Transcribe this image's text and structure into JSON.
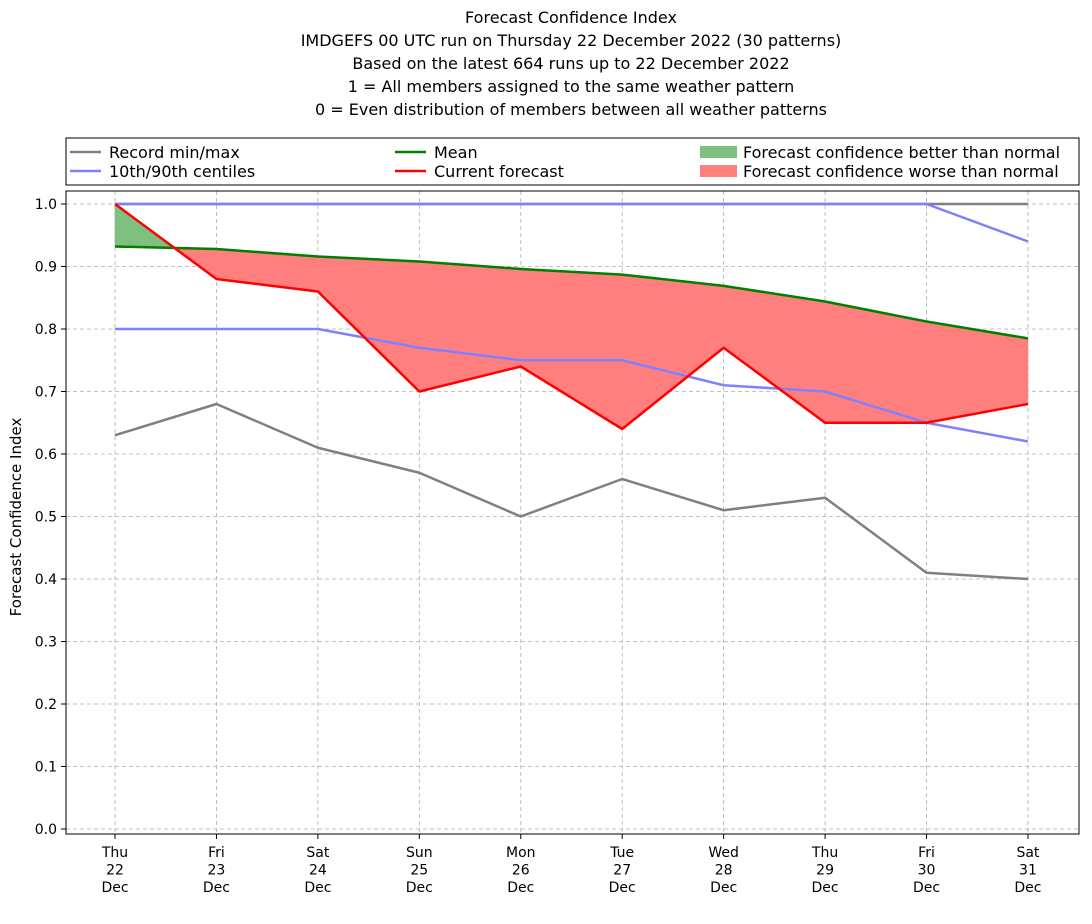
{
  "chart_data": {
    "type": "line",
    "title": [
      "Forecast Confidence Index",
      "IMDGEFS 00 UTC run on Thursday 22 December 2022 (30 patterns)",
      "Based on the latest 664 runs up to 22 December 2022",
      "1 = All members assigned to the same weather pattern",
      "0 = Even distribution of members between all weather patterns"
    ],
    "xlabel": "",
    "ylabel": "Forecast Confidence Index",
    "ylim": [
      0,
      1.0
    ],
    "yticks": [
      "0.0",
      "0.1",
      "0.2",
      "0.3",
      "0.4",
      "0.5",
      "0.6",
      "0.7",
      "0.8",
      "0.9",
      "1.0"
    ],
    "categories": [
      [
        "Thu",
        "22",
        "Dec"
      ],
      [
        "Fri",
        "23",
        "Dec"
      ],
      [
        "Sat",
        "24",
        "Dec"
      ],
      [
        "Sun",
        "25",
        "Dec"
      ],
      [
        "Mon",
        "26",
        "Dec"
      ],
      [
        "Tue",
        "27",
        "Dec"
      ],
      [
        "Wed",
        "28",
        "Dec"
      ],
      [
        "Thu",
        "29",
        "Dec"
      ],
      [
        "Fri",
        "30",
        "Dec"
      ],
      [
        "Sat",
        "31",
        "Dec"
      ]
    ],
    "grid": true,
    "legend_placement": "top",
    "series": [
      {
        "key": "record_max",
        "legend": "record",
        "color": "#808080",
        "values": [
          1.0,
          1.0,
          1.0,
          1.0,
          1.0,
          1.0,
          1.0,
          1.0,
          1.0,
          1.0
        ]
      },
      {
        "key": "record_min",
        "legend": "record",
        "color": "#808080",
        "values": [
          0.63,
          0.68,
          0.61,
          0.57,
          0.5,
          0.56,
          0.51,
          0.53,
          0.41,
          0.4
        ]
      },
      {
        "key": "p90",
        "legend": "centiles",
        "color": "#8080ff",
        "values": [
          1.0,
          1.0,
          1.0,
          1.0,
          1.0,
          1.0,
          1.0,
          1.0,
          1.0,
          0.94
        ]
      },
      {
        "key": "p10",
        "legend": "centiles",
        "color": "#8080ff",
        "values": [
          0.8,
          0.8,
          0.8,
          0.77,
          0.75,
          0.75,
          0.71,
          0.7,
          0.65,
          0.62
        ]
      },
      {
        "key": "mean",
        "legend": "mean",
        "color": "#008000",
        "values": [
          0.932,
          0.928,
          0.916,
          0.908,
          0.896,
          0.887,
          0.869,
          0.844,
          0.812,
          0.785
        ]
      },
      {
        "key": "current",
        "legend": "current",
        "color": "#ff0000",
        "values": [
          1.0,
          0.88,
          0.86,
          0.7,
          0.74,
          0.64,
          0.77,
          0.65,
          0.65,
          0.68
        ]
      }
    ],
    "fill_better_color": "#7fbf7f",
    "fill_worse_color": "#ff7f7f",
    "legend": {
      "record": "Record min/max",
      "centiles": "10th/90th centiles",
      "mean": "Mean",
      "current": "Current forecast",
      "better": "Forecast confidence better than normal",
      "worse": "Forecast confidence worse than normal"
    }
  }
}
